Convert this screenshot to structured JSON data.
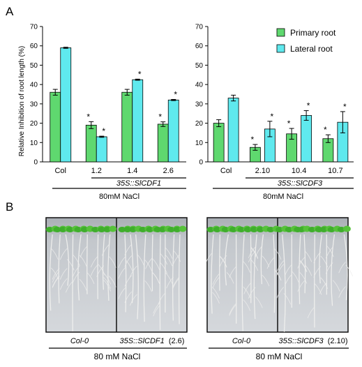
{
  "panels": {
    "a": "A",
    "b": "B"
  },
  "colors": {
    "primary": "#5fd86f",
    "lateral": "#5fe9ee",
    "axis": "#000000"
  },
  "legend": {
    "primary": "Primary root",
    "lateral": "Lateral root",
    "placement": "top-right"
  },
  "chart_data": [
    {
      "type": "bar",
      "ylabel": "Relative Inhibition of root length (%)",
      "ylim": [
        0,
        70
      ],
      "yticks": [
        0,
        10,
        20,
        30,
        40,
        50,
        60,
        70
      ],
      "categories": [
        "Col",
        "1.2",
        "1.4",
        "2.6"
      ],
      "series": [
        {
          "name": "Primary root",
          "values": [
            36,
            19,
            36,
            19.5
          ],
          "errors": [
            1.5,
            1.8,
            1.5,
            1.2
          ],
          "significant": [
            false,
            true,
            false,
            true
          ]
        },
        {
          "name": "Lateral root",
          "values": [
            59,
            13,
            42.5,
            32
          ],
          "errors": [
            0.3,
            0.3,
            0.3,
            0.3
          ],
          "significant": [
            false,
            true,
            true,
            true
          ]
        }
      ],
      "group_label": "35S::SlCDF1",
      "treatment": "80mM NaCl"
    },
    {
      "type": "bar",
      "ylim": [
        0,
        70
      ],
      "yticks": [
        0,
        10,
        20,
        30,
        40,
        50,
        60,
        70
      ],
      "categories": [
        "Col",
        "2.10",
        "10.4",
        "10.7"
      ],
      "series": [
        {
          "name": "Primary root",
          "values": [
            20,
            7.5,
            14.5,
            12
          ],
          "errors": [
            1.8,
            1.5,
            2.8,
            2.0
          ],
          "significant": [
            false,
            true,
            true,
            true
          ]
        },
        {
          "name": "Lateral root",
          "values": [
            33,
            17,
            24,
            20.5
          ],
          "errors": [
            1.5,
            4.0,
            2.5,
            5.5
          ],
          "significant": [
            false,
            true,
            true,
            true
          ]
        }
      ],
      "group_label": "35S::SlCDF3",
      "treatment": "80mM NaCl"
    }
  ],
  "photos": {
    "left": {
      "label_col": "Col-0",
      "label_trans": "35S::SlCDF1",
      "label_line": "(2.6)",
      "treatment": "80 mM NaCl"
    },
    "right": {
      "label_col": "Col-0",
      "label_trans": "35S::SlCDF3",
      "label_line": "(2.10)",
      "treatment": "80 mM NaCl"
    }
  }
}
